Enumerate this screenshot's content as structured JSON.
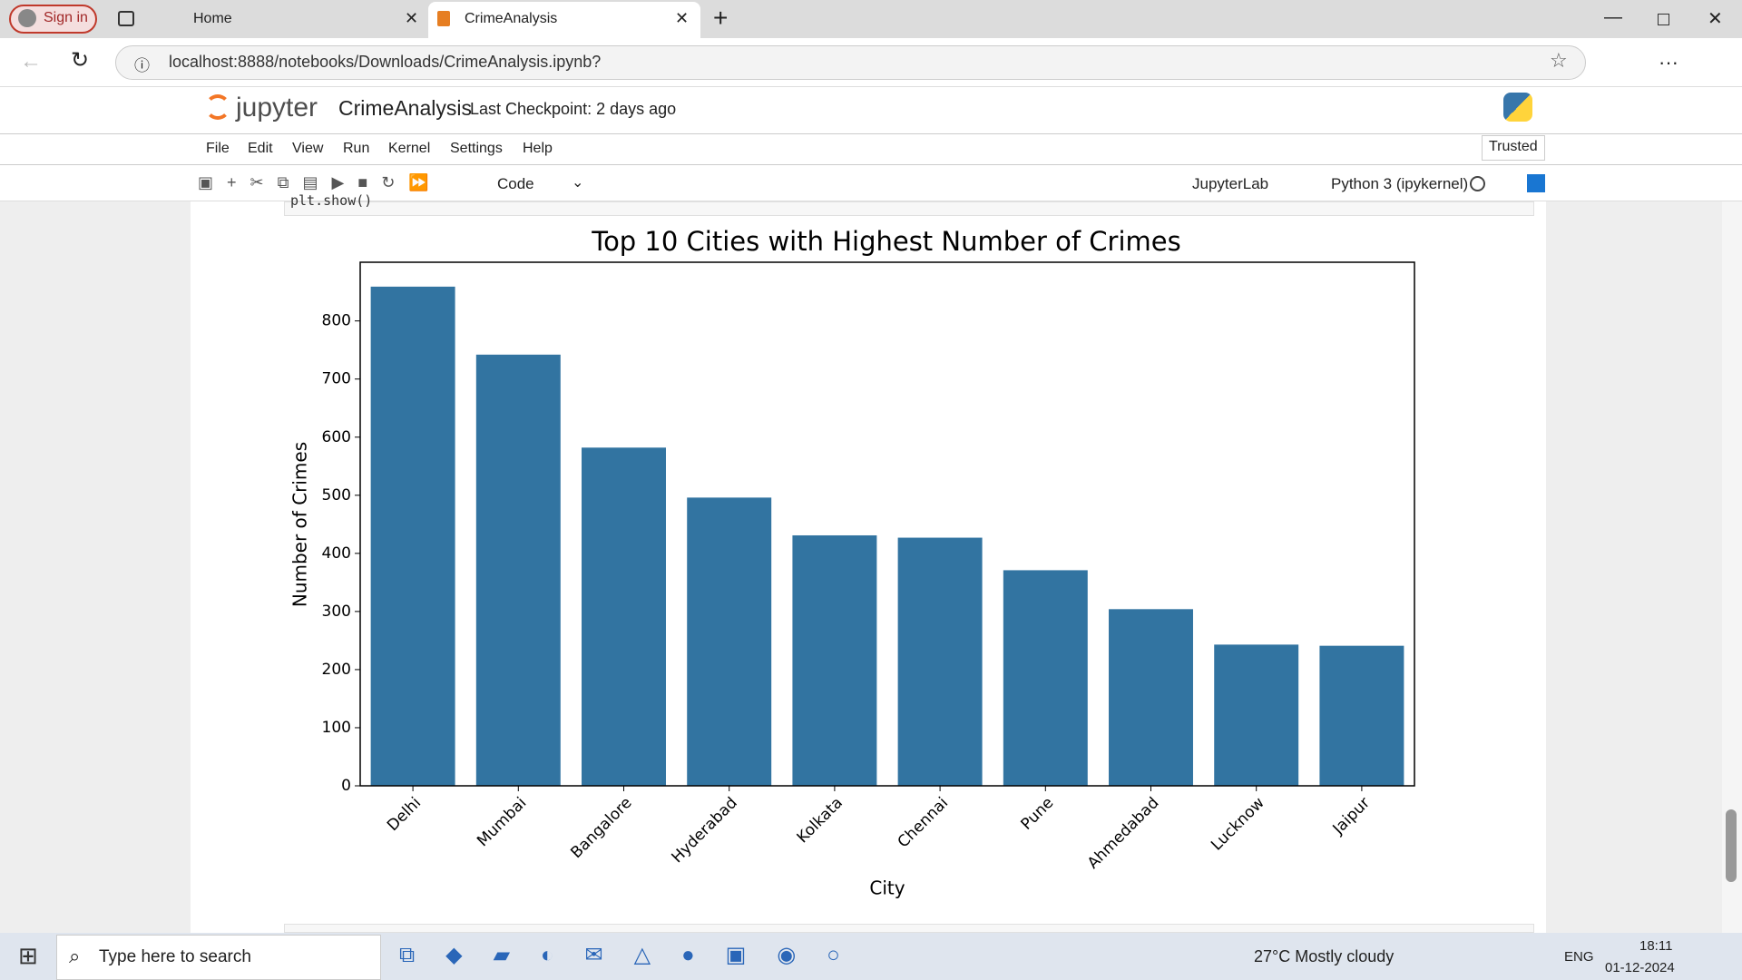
{
  "browser": {
    "sign_in": "Sign in",
    "tabs": [
      "Home",
      "CrimeAnalysis"
    ],
    "url": "localhost:8888/notebooks/Downloads/CrimeAnalysis.ipynb?"
  },
  "notebook": {
    "logo": "jupyter",
    "name": "CrimeAnalysis",
    "checkpoint": "Last Checkpoint: 2 days ago",
    "menu": [
      "File",
      "Edit",
      "View",
      "Run",
      "Kernel",
      "Settings",
      "Help"
    ],
    "trusted": "Trusted",
    "cell_type": "Code",
    "jupyterlab": "JupyterLab",
    "kernel": "Python 3 (ipykernel)",
    "code_line": "plt.show()"
  },
  "chart_data": {
    "type": "bar",
    "title": "Top 10 Cities with Highest Number of Crimes",
    "x_label": "City",
    "y_label": "Number of Crimes",
    "categories": [
      "Delhi",
      "Mumbai",
      "Bangalore",
      "Hyderabad",
      "Kolkata",
      "Chennai",
      "Pune",
      "Ahmedabad",
      "Lucknow",
      "Jaipur"
    ],
    "values": [
      859,
      742,
      582,
      496,
      431,
      427,
      371,
      304,
      243,
      241
    ],
    "color": "#3274a1",
    "ylim": [
      0,
      901
    ],
    "yticks": [
      0,
      100,
      200,
      300,
      400,
      500,
      600,
      700,
      800
    ],
    "grid": false
  },
  "taskbar": {
    "search": "Type here to search",
    "weather": "27°C  Mostly cloudy",
    "lang": "ENG",
    "time": "18:11",
    "date": "01-12-2024"
  }
}
